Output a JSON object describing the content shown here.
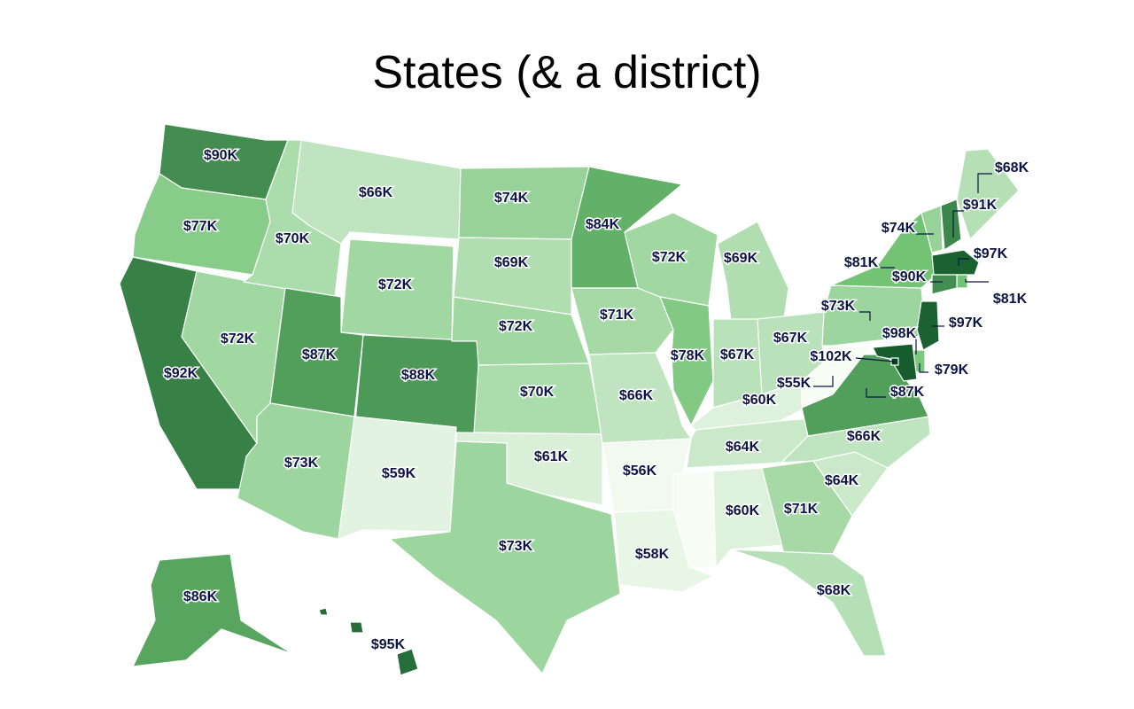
{
  "title": "States (& a district)",
  "scale": {
    "min": 55,
    "max": 102,
    "low_color": "#f7fcf5",
    "high_color": "#00441b"
  },
  "states": [
    {
      "id": "WA",
      "label": "$90K",
      "value": 90
    },
    {
      "id": "OR",
      "label": "$77K",
      "value": 77
    },
    {
      "id": "CA",
      "label": "$92K",
      "value": 92
    },
    {
      "id": "NV",
      "label": "$72K",
      "value": 72
    },
    {
      "id": "ID",
      "label": "$70K",
      "value": 70
    },
    {
      "id": "MT",
      "label": "$66K",
      "value": 66
    },
    {
      "id": "WY",
      "label": "$72K",
      "value": 72
    },
    {
      "id": "UT",
      "label": "$87K",
      "value": 87
    },
    {
      "id": "CO",
      "label": "$88K",
      "value": 88
    },
    {
      "id": "AZ",
      "label": "$73K",
      "value": 73
    },
    {
      "id": "NM",
      "label": "$59K",
      "value": 59
    },
    {
      "id": "ND",
      "label": "$74K",
      "value": 74
    },
    {
      "id": "SD",
      "label": "$69K",
      "value": 69
    },
    {
      "id": "NE",
      "label": "$72K",
      "value": 72
    },
    {
      "id": "KS",
      "label": "$70K",
      "value": 70
    },
    {
      "id": "OK",
      "label": "$61K",
      "value": 61
    },
    {
      "id": "TX",
      "label": "$73K",
      "value": 73
    },
    {
      "id": "MN",
      "label": "$84K",
      "value": 84
    },
    {
      "id": "IA",
      "label": "$71K",
      "value": 71
    },
    {
      "id": "MO",
      "label": "$66K",
      "value": 66
    },
    {
      "id": "AR",
      "label": "$56K",
      "value": 56
    },
    {
      "id": "LA",
      "label": "$58K",
      "value": 58
    },
    {
      "id": "WI",
      "label": "$72K",
      "value": 72
    },
    {
      "id": "IL",
      "label": "$78K",
      "value": 78
    },
    {
      "id": "MI",
      "label": "$69K",
      "value": 69
    },
    {
      "id": "IN",
      "label": "$67K",
      "value": 67
    },
    {
      "id": "OH",
      "label": "$67K",
      "value": 67
    },
    {
      "id": "KY",
      "label": "$60K",
      "value": 60
    },
    {
      "id": "TN",
      "label": "$64K",
      "value": 64
    },
    {
      "id": "MS",
      "label": "$55K",
      "value": 55
    },
    {
      "id": "AL",
      "label": "$60K",
      "value": 60
    },
    {
      "id": "GA",
      "label": "$71K",
      "value": 71
    },
    {
      "id": "FL",
      "label": "$68K",
      "value": 68
    },
    {
      "id": "SC",
      "label": "$64K",
      "value": 64
    },
    {
      "id": "NC",
      "label": "$66K",
      "value": 66
    },
    {
      "id": "VA",
      "label": "$87K",
      "value": 87
    },
    {
      "id": "WV",
      "label": "$55K",
      "value": 55
    },
    {
      "id": "PA",
      "label": "$73K",
      "value": 73
    },
    {
      "id": "NY",
      "label": "$81K",
      "value": 81
    },
    {
      "id": "VT",
      "label": "$74K",
      "value": 74
    },
    {
      "id": "NH",
      "label": "$91K",
      "value": 91
    },
    {
      "id": "ME",
      "label": "$68K",
      "value": 68
    },
    {
      "id": "MA",
      "label": "$97K",
      "value": 97
    },
    {
      "id": "RI",
      "label": "$81K",
      "value": 81
    },
    {
      "id": "CT",
      "label": "$90K",
      "value": 90
    },
    {
      "id": "NJ",
      "label": "$97K",
      "value": 97
    },
    {
      "id": "DE",
      "label": "$79K",
      "value": 79
    },
    {
      "id": "MD",
      "label": "$98K",
      "value": 98
    },
    {
      "id": "DC",
      "label": "$102K",
      "value": 102
    },
    {
      "id": "AK",
      "label": "$86K",
      "value": 86
    },
    {
      "id": "HI",
      "label": "$95K",
      "value": 95
    }
  ]
}
